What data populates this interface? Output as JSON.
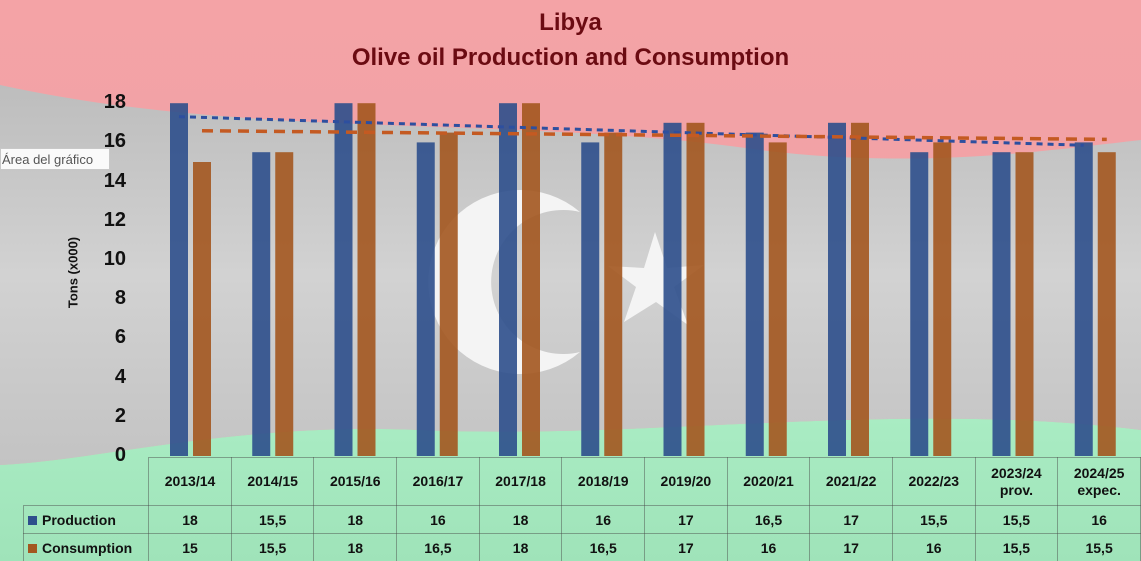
{
  "tooltip": "Área del gráfico",
  "colors": {
    "production": "#2e4f8c",
    "consumption": "#a3571f",
    "production_trend": "#2d4f9f",
    "consumption_trend": "#c45a22",
    "title": "#6b0b12",
    "flag_red": "#ef9a9e",
    "flag_black": "#c4c4c4",
    "flag_green": "#a6e8c0"
  },
  "chart_data": {
    "type": "bar",
    "title": "Libya",
    "subtitle": "Olive oil Production and Consumption",
    "ylabel": "Tons (x000)",
    "xlabel": "",
    "ylim": [
      0,
      18
    ],
    "yticks": [
      0,
      2,
      4,
      6,
      8,
      10,
      12,
      14,
      16,
      18
    ],
    "grid": false,
    "legend": "data-table",
    "trendlines": "linear",
    "categories": [
      "2013/14",
      "2014/15",
      "2015/16",
      "2016/17",
      "2017/18",
      "2018/19",
      "2019/20",
      "2020/21",
      "2021/22",
      "2022/23",
      "2023/24 prov.",
      "2024/25 expec."
    ],
    "series": [
      {
        "name": "Production",
        "values": [
          18,
          15.5,
          18,
          16,
          18,
          16,
          17,
          16.5,
          17,
          15.5,
          15.5,
          16
        ],
        "labels": [
          "18",
          "15,5",
          "18",
          "16",
          "18",
          "16",
          "17",
          "16,5",
          "17",
          "15,5",
          "15,5",
          "16"
        ]
      },
      {
        "name": "Consumption",
        "values": [
          15,
          15.5,
          18,
          16.5,
          18,
          16.5,
          17,
          16,
          17,
          16,
          15.5,
          15.5
        ],
        "labels": [
          "15",
          "15,5",
          "18",
          "16,5",
          "18",
          "16,5",
          "17",
          "16",
          "17",
          "16",
          "15,5",
          "15,5"
        ]
      }
    ]
  }
}
